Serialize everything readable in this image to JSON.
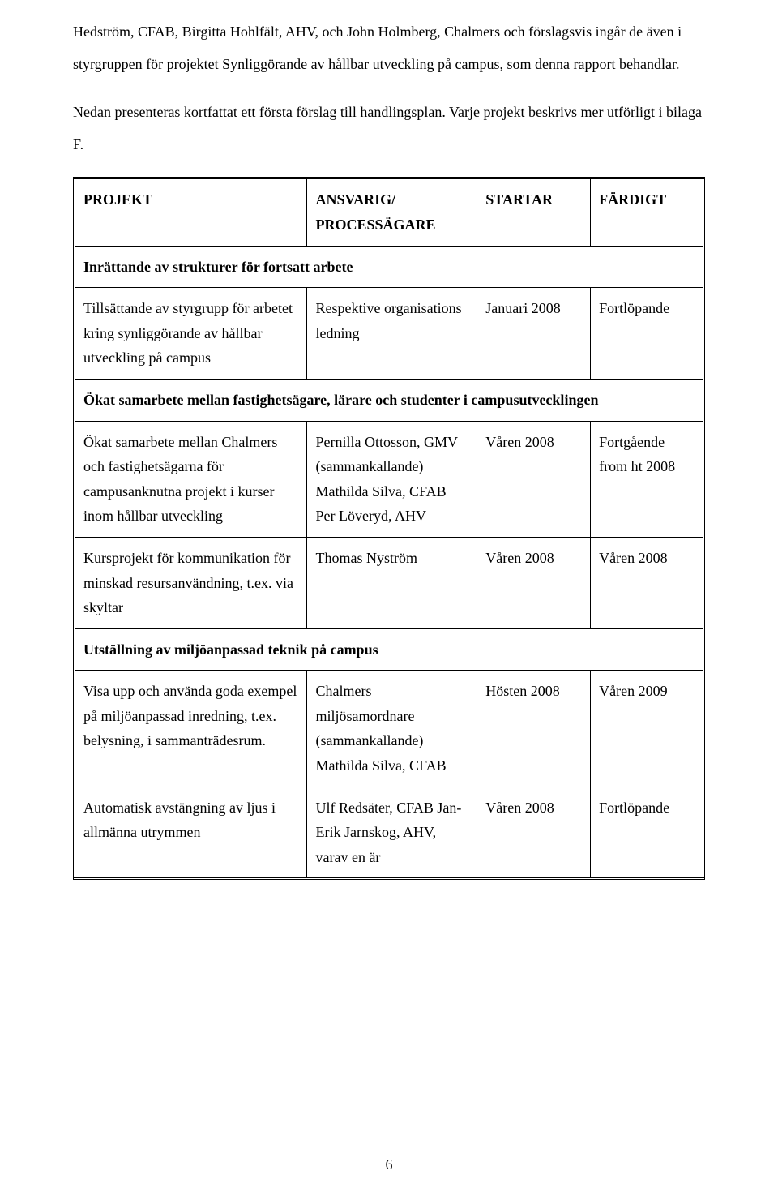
{
  "paragraphs": {
    "p1": "Hedström, CFAB, Birgitta Hohlfält, AHV, och John Holmberg, Chalmers och förslagsvis ingår de även i styrgruppen för projektet Synliggörande av hållbar utveckling på campus, som denna rapport behandlar.",
    "p2": "Nedan presenteras kortfattat ett första förslag till handlingsplan. Varje projekt beskrivs mer utförligt i bilaga F."
  },
  "headers": {
    "projekt": "PROJEKT",
    "ansvarig_l1": "ANSVARIG/",
    "ansvarig_l2": "PROCESSÄGARE",
    "startar": "STARTAR",
    "fardigt": "FÄRDIGT"
  },
  "sections": {
    "s1": "Inrättande av strukturer för fortsatt arbete",
    "s2": "Ökat samarbete mellan fastighetsägare, lärare och studenter i campusutvecklingen",
    "s3": "Utställning av miljöanpassad teknik på campus"
  },
  "rows": {
    "r1": {
      "proj": "Tillsättande av styrgrupp för arbetet kring synliggörande av hållbar utveckling på campus",
      "ans": "Respektive organisations ledning",
      "start": "Januari 2008",
      "fard": "Fortlöpande"
    },
    "r2": {
      "proj": "Ökat samarbete mellan Chalmers och fastighetsägarna för campusanknutna projekt i kurser inom hållbar utveckling",
      "ans": "Pernilla Ottosson, GMV (sammankallande) Mathilda Silva, CFAB Per Löveryd, AHV",
      "start": "Våren 2008",
      "fard": "Fortgående from ht 2008"
    },
    "r3": {
      "proj": "Kursprojekt för kommunikation för minskad resursanvändning, t.ex. via skyltar",
      "ans": "Thomas Nyström",
      "start": "Våren 2008",
      "fard": "Våren 2008"
    },
    "r4": {
      "proj": "Visa upp och använda goda exempel på miljöanpassad inredning, t.ex. belysning, i sammanträdesrum.",
      "ans": "Chalmers miljösamordnare (sammankallande) Mathilda Silva, CFAB",
      "start": "Hösten 2008",
      "fard": "Våren 2009"
    },
    "r5": {
      "proj": "Automatisk avstängning av ljus i allmänna utrymmen",
      "ans": "Ulf Redsäter, CFAB Jan-Erik Jarnskog, AHV, varav en är",
      "start": "Våren 2008",
      "fard": "Fortlöpande"
    }
  },
  "page_number": "6"
}
